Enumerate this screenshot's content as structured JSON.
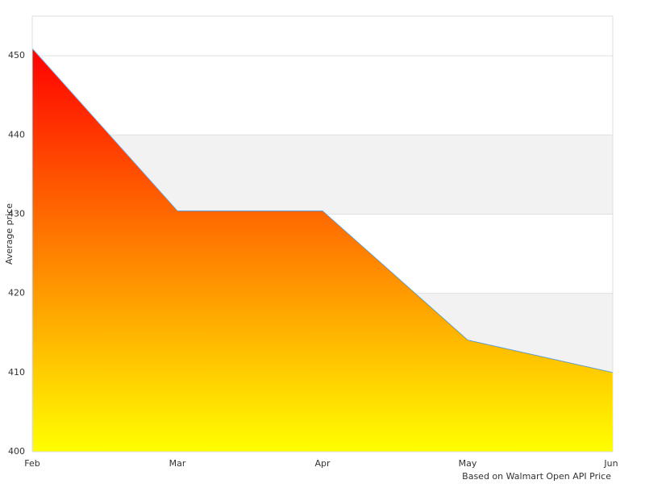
{
  "chart_data": {
    "type": "area",
    "categories": [
      "Feb",
      "Mar",
      "Apr",
      "May",
      "Jun"
    ],
    "values": [
      450.9,
      430.4,
      430.4,
      414.1,
      410
    ],
    "ylim": [
      400,
      455
    ],
    "yticks": [
      400,
      410,
      420,
      430,
      440,
      450
    ],
    "y_label": "Average price",
    "x_label": "Based on Walmart Open API Price",
    "gradient": [
      "#ff0000",
      "#ffff00"
    ],
    "line_color": "#5b9bd5",
    "band_color": "#f2f2f2",
    "grid": true
  }
}
